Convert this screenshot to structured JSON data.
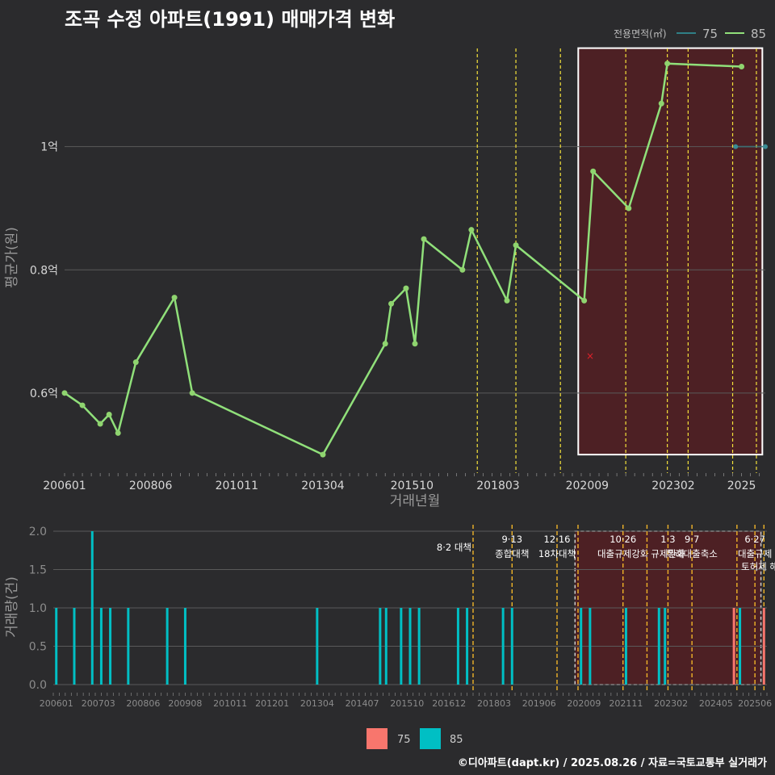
{
  "title": "조곡 수정 아파트(1991) 매매가격 변화",
  "footer": "©디아파트(dapt.kr) / 2025.08.26 / 자료=국토교통부 실거래가",
  "colors": {
    "bg": "#2b2b2d",
    "grid": "#5a5a5a",
    "line85": "#90e07a",
    "bar75": "#f8766d",
    "bar85": "#00bfc4",
    "vline": "#f5e23a",
    "policy_line": "#f0b429",
    "highlight": "#5a1e22",
    "outlier": "#e0202a"
  },
  "chart_data": [
    {
      "type": "line",
      "ylabel": "평균가(원)",
      "xlabel": "거래년월",
      "x_ticks": [
        "200601",
        "200806",
        "201011",
        "201304",
        "201510",
        "201803",
        "202009",
        "202302",
        "2025"
      ],
      "y_ticks": [
        "0.6억",
        "0.8억",
        "1억"
      ],
      "y_tick_values": [
        6000,
        8000,
        10000
      ],
      "ylim": [
        4700,
        11700
      ],
      "xlim": [
        "2006-01",
        "2025-09"
      ],
      "legend": {
        "title": "전용면적(㎡)",
        "items": [
          "75",
          "85"
        ],
        "position": "top-right"
      },
      "series": [
        {
          "name": "85",
          "points": [
            [
              "2006-01",
              6000
            ],
            [
              "2006-07",
              5800
            ],
            [
              "2007-01",
              5500
            ],
            [
              "2007-04",
              5650
            ],
            [
              "2007-07",
              5350
            ],
            [
              "2008-01",
              6500
            ],
            [
              "2009-02",
              7550
            ],
            [
              "2009-08",
              6000
            ],
            [
              "2013-04",
              5000
            ],
            [
              "2015-01",
              6800
            ],
            [
              "2015-03",
              7450
            ],
            [
              "2015-08",
              7700
            ],
            [
              "2015-11",
              6800
            ],
            [
              "2016-02",
              8500
            ],
            [
              "2017-03",
              8000
            ],
            [
              "2017-06",
              8650
            ],
            [
              "2018-06",
              7500
            ],
            [
              "2018-09",
              8400
            ],
            [
              "2020-08",
              7500
            ],
            [
              "2020-11",
              9600
            ],
            [
              "2021-11",
              9000
            ],
            [
              "2022-10",
              10700
            ],
            [
              "2022-12",
              11350
            ],
            [
              "2025-01",
              11300
            ]
          ]
        },
        {
          "name": "75",
          "points": [
            [
              "2024-11",
              10000
            ],
            [
              "2025-09",
              10000
            ]
          ]
        }
      ],
      "outlier": [
        "2020-10",
        6600
      ],
      "vertical_lines": [
        "2017-08",
        "2018-09",
        "2019-12",
        "2021-10",
        "2022-12",
        "2023-07",
        "2024-10",
        "2025-06"
      ],
      "highlight": [
        "2020-06",
        "2025-08"
      ]
    },
    {
      "type": "bar",
      "ylabel": "거래량(건)",
      "y_ticks": [
        "0.0",
        "0.5",
        "1.0",
        "1.5",
        "2.0"
      ],
      "y_tick_values": [
        0,
        0.5,
        1,
        1.5,
        2
      ],
      "ylim": [
        0,
        2
      ],
      "x_ticks": [
        "200601",
        "200703",
        "200806",
        "200908",
        "201011",
        "201201",
        "201304",
        "201407",
        "201510",
        "201612",
        "201803",
        "201906",
        "202009",
        "202111",
        "202302",
        "202405",
        "202506"
      ],
      "legend_items": [
        "75",
        "85"
      ],
      "series": [
        {
          "name": "85",
          "bars": [
            [
              "2006-01",
              1
            ],
            [
              "2006-07",
              1
            ],
            [
              "2007-01",
              2
            ],
            [
              "2007-04",
              1
            ],
            [
              "2007-07",
              1
            ],
            [
              "2008-01",
              1
            ],
            [
              "2009-02",
              1
            ],
            [
              "2009-08",
              1
            ],
            [
              "2013-04",
              1
            ],
            [
              "2015-01",
              1
            ],
            [
              "2015-03",
              1
            ],
            [
              "2015-08",
              1
            ],
            [
              "2015-11",
              1
            ],
            [
              "2016-02",
              1
            ],
            [
              "2017-03",
              1
            ],
            [
              "2017-06",
              1
            ],
            [
              "2018-06",
              1
            ],
            [
              "2018-09",
              1
            ],
            [
              "2020-08",
              1
            ],
            [
              "2020-11",
              1
            ],
            [
              "2021-11",
              1
            ],
            [
              "2022-10",
              1
            ],
            [
              "2022-12",
              1
            ],
            [
              "2025-01",
              1
            ]
          ]
        },
        {
          "name": "75",
          "bars": [
            [
              "2024-11",
              1
            ],
            [
              "2025-09",
              1
            ]
          ]
        }
      ],
      "policies": [
        {
          "date": "2017-08",
          "lines": [
            "8·2 대책"
          ]
        },
        {
          "date": "2018-09",
          "lines": [
            "9·13",
            "종합대책"
          ]
        },
        {
          "date": "2019-12",
          "lines": [
            "12·16",
            "18차대책"
          ]
        },
        {
          "date": "2020-07",
          "lines": []
        },
        {
          "date": "2021-10",
          "lines": [
            "10·26",
            "대출규제강화"
          ]
        },
        {
          "date": "2022-06",
          "lines": []
        },
        {
          "date": "2023-01",
          "lines": [
            "1·3",
            "규제완화"
          ]
        },
        {
          "date": "2023-09",
          "lines": [
            "9·7",
            "특례대출축소"
          ]
        },
        {
          "date": "2024-12",
          "lines": []
        },
        {
          "date": "2025-06",
          "lines": [
            "6·27",
            "대출규제"
          ]
        },
        {
          "date": "2025-09",
          "lines": [
            "토허제 해제"
          ]
        }
      ],
      "highlight": [
        "2020-06",
        "2025-08"
      ]
    }
  ]
}
